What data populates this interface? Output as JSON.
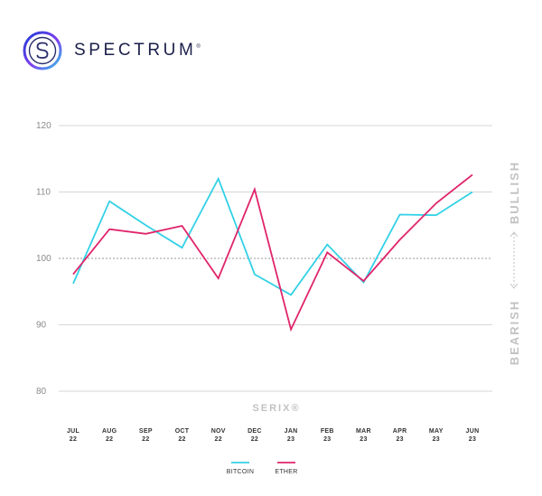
{
  "brand": {
    "name": "SPECTRUM",
    "mark": "®",
    "logo_icon": "spectrum-s-ring-icon",
    "colors": [
      "#1f3fd6",
      "#7d3cf0",
      "#35c8e8"
    ]
  },
  "chart_data": {
    "type": "line",
    "title": "",
    "xlabel": "SERIX®",
    "ylabel": "",
    "ylim": [
      80,
      120
    ],
    "yticks": [
      80,
      90,
      100,
      110,
      120
    ],
    "reference_line": 100,
    "grid": true,
    "side_labels": {
      "top": "BULLISH",
      "bottom": "BEARISH"
    },
    "categories": [
      [
        "JUL",
        "22"
      ],
      [
        "AUG",
        "22"
      ],
      [
        "SEP",
        "22"
      ],
      [
        "OCT",
        "22"
      ],
      [
        "NOV",
        "22"
      ],
      [
        "DEC",
        "22"
      ],
      [
        "JAN",
        "23"
      ],
      [
        "FEB",
        "23"
      ],
      [
        "MAR",
        "23"
      ],
      [
        "APR",
        "23"
      ],
      [
        "MAY",
        "23"
      ],
      [
        "JUN",
        "23"
      ]
    ],
    "series": [
      {
        "name": "BITCOIN",
        "color": "#33d1e6",
        "values": [
          96.2,
          108.6,
          105.0,
          101.6,
          112.0,
          97.6,
          94.5,
          102.1,
          96.4,
          106.6,
          106.5,
          110.0
        ]
      },
      {
        "name": "ETHER",
        "color": "#e0246b",
        "values": [
          97.6,
          104.4,
          103.7,
          104.9,
          97.0,
          110.4,
          89.3,
          100.9,
          96.6,
          102.8,
          108.3,
          112.6
        ]
      }
    ],
    "legend": "bottom"
  }
}
